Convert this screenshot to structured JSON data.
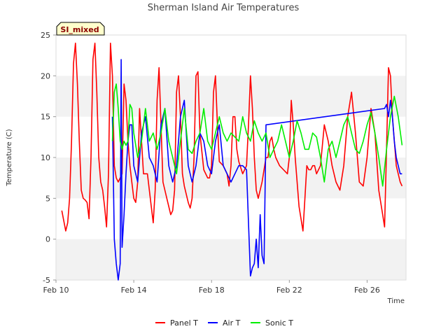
{
  "chart_data": {
    "type": "line",
    "title": "Sherman Island Air Temperatures",
    "xlabel": "Time",
    "ylabel": "Temperature (C)",
    "badge": "SI_mixed",
    "x_unit": "days since Feb 10",
    "xlim": [
      0,
      18
    ],
    "ylim": [
      -5,
      25
    ],
    "x_ticks": [
      0,
      4,
      8,
      12,
      16
    ],
    "x_tick_labels": [
      "Feb 10",
      "Feb 14",
      "Feb 18",
      "Feb 22",
      "Feb 26"
    ],
    "y_ticks": [
      -5,
      0,
      5,
      10,
      15,
      20,
      25
    ],
    "y_tick_labels": [
      "-5",
      "0",
      "5",
      "10",
      "15",
      "20",
      "25"
    ],
    "grid": "horizontal bands",
    "band_color": "#f2f2f2",
    "legend_position": "bottom",
    "series": [
      {
        "name": "Panel T",
        "color": "#ff0000",
        "x": [
          0.3,
          0.5,
          0.6,
          0.7,
          0.8,
          0.9,
          1.0,
          1.1,
          1.2,
          1.3,
          1.4,
          1.5,
          1.6,
          1.7,
          1.8,
          1.9,
          2.0,
          2.1,
          2.2,
          2.3,
          2.4,
          2.5,
          2.6,
          2.7,
          2.8,
          2.9,
          3.0,
          3.1,
          3.2,
          3.3,
          3.4,
          3.5,
          3.6,
          3.7,
          3.8,
          3.9,
          4.0,
          4.1,
          4.2,
          4.3,
          4.5,
          4.7,
          4.9,
          5.0,
          5.1,
          5.2,
          5.3,
          5.4,
          5.5,
          5.7,
          5.9,
          6.0,
          6.1,
          6.2,
          6.3,
          6.4,
          6.5,
          6.6,
          6.8,
          6.9,
          7.0,
          7.1,
          7.2,
          7.3,
          7.4,
          7.6,
          7.8,
          7.9,
          8.0,
          8.1,
          8.2,
          8.3,
          8.4,
          8.6,
          8.8,
          8.9,
          9.0,
          9.1,
          9.2,
          9.3,
          9.4,
          9.6,
          9.8,
          9.9,
          10.0,
          10.1,
          10.2,
          10.3,
          10.4,
          10.6,
          10.8,
          10.9,
          11.0,
          11.1,
          11.2,
          11.3,
          11.5,
          11.7,
          11.9,
          12.0,
          12.1,
          12.2,
          12.3,
          12.5,
          12.7,
          12.8,
          12.9,
          13.0,
          13.1,
          13.2,
          13.3,
          13.4,
          13.6,
          13.8,
          14.0,
          14.2,
          14.4,
          14.6,
          14.8,
          15.0,
          15.2,
          15.4,
          15.6,
          15.8,
          16.0,
          16.2,
          16.4,
          16.6,
          16.8,
          16.9,
          17.0,
          17.1,
          17.2,
          17.3,
          17.5,
          17.7,
          17.8
        ],
        "y": [
          3.5,
          1.0,
          2.0,
          5.0,
          12.0,
          21.5,
          24.0,
          19.0,
          12.0,
          6.0,
          5.0,
          4.8,
          4.5,
          2.5,
          10.0,
          22.0,
          24.0,
          18.0,
          10.0,
          7.0,
          6.0,
          4.0,
          1.5,
          8.0,
          24.0,
          20.0,
          9.0,
          7.5,
          7.0,
          7.5,
          8.0,
          19.0,
          17.0,
          12.0,
          9.0,
          7.0,
          5.0,
          4.5,
          7.0,
          16.0,
          8.0,
          8.0,
          4.0,
          2.0,
          6.0,
          17.0,
          21.0,
          14.0,
          7.0,
          5.0,
          3.0,
          3.5,
          6.0,
          18.0,
          20.0,
          15.0,
          8.0,
          6.5,
          4.5,
          3.8,
          5.0,
          10.0,
          20.0,
          20.5,
          13.0,
          8.5,
          7.5,
          7.5,
          9.0,
          18.0,
          20.0,
          14.0,
          9.5,
          9.0,
          8.0,
          6.5,
          9.0,
          15.0,
          15.0,
          11.0,
          9.5,
          8.0,
          9.0,
          14.0,
          20.0,
          16.0,
          10.0,
          6.0,
          5.0,
          7.0,
          10.0,
          10.0,
          12.0,
          12.5,
          11.0,
          10.0,
          9.0,
          8.5,
          8.0,
          10.0,
          17.0,
          14.0,
          10.0,
          4.0,
          1.0,
          5.0,
          9.0,
          8.5,
          8.5,
          9.0,
          9.0,
          8.0,
          9.0,
          14.0,
          12.0,
          9.0,
          7.0,
          6.0,
          9.0,
          15.0,
          18.0,
          13.0,
          7.0,
          6.5,
          10.0,
          16.0,
          13.0,
          6.0,
          3.0,
          1.5,
          11.0,
          21.0,
          20.0,
          15.0,
          9.0,
          7.0,
          6.5
        ]
      },
      {
        "name": "Air T",
        "color": "#0000ff",
        "x": [
          2.9,
          3.0,
          3.1,
          3.2,
          3.3,
          3.35,
          3.4,
          3.5,
          3.6,
          3.7,
          3.8,
          3.9,
          4.0,
          4.2,
          4.4,
          4.6,
          4.8,
          5.0,
          5.2,
          5.4,
          5.6,
          5.8,
          6.0,
          6.2,
          6.4,
          6.6,
          6.8,
          7.0,
          7.2,
          7.4,
          7.6,
          7.8,
          8.0,
          8.2,
          8.4,
          8.6,
          8.8,
          9.0,
          9.2,
          9.4,
          9.6,
          9.8,
          10.0,
          10.1,
          10.2,
          10.3,
          10.4,
          10.5,
          10.6,
          10.7,
          10.8,
          16.9,
          17.0,
          17.1,
          17.2,
          17.3,
          17.4,
          17.5,
          17.6,
          17.7,
          17.8
        ],
        "y": [
          15.0,
          0.0,
          -3.0,
          -5.0,
          -3.0,
          22.0,
          -1.0,
          3.0,
          8.0,
          12.0,
          14.0,
          14.0,
          9.0,
          7.0,
          13.0,
          15.0,
          10.0,
          9.0,
          7.0,
          14.0,
          16.0,
          9.0,
          7.0,
          9.0,
          15.0,
          17.0,
          9.0,
          7.0,
          9.0,
          13.0,
          12.0,
          9.0,
          8.0,
          12.0,
          14.0,
          9.0,
          8.0,
          7.0,
          8.0,
          9.0,
          9.0,
          8.5,
          -4.5,
          -3.5,
          -3.0,
          0.0,
          -3.5,
          3.0,
          -2.0,
          -3.0,
          14.0,
          16.0,
          16.5,
          15.0,
          17.0,
          15.0,
          12.0,
          10.0,
          9.0,
          8.0,
          8.0
        ]
      },
      {
        "name": "Sonic T",
        "color": "#00ee00",
        "x": [
          2.9,
          3.0,
          3.1,
          3.2,
          3.3,
          3.4,
          3.5,
          3.6,
          3.7,
          3.8,
          3.9,
          4.0,
          4.2,
          4.4,
          4.6,
          4.8,
          5.0,
          5.2,
          5.4,
          5.6,
          5.8,
          6.0,
          6.2,
          6.4,
          6.6,
          6.8,
          7.0,
          7.2,
          7.4,
          7.6,
          7.8,
          8.0,
          8.2,
          8.4,
          8.6,
          8.8,
          9.0,
          9.2,
          9.4,
          9.6,
          9.8,
          10.0,
          10.2,
          10.4,
          10.6,
          10.8,
          11.0,
          11.2,
          11.4,
          11.6,
          11.8,
          12.0,
          12.2,
          12.4,
          12.6,
          12.8,
          13.0,
          13.2,
          13.4,
          13.6,
          13.8,
          14.0,
          14.2,
          14.4,
          14.6,
          14.8,
          15.0,
          15.2,
          15.4,
          15.6,
          15.8,
          16.0,
          16.2,
          16.4,
          16.6,
          16.8,
          17.0,
          17.2,
          17.4,
          17.6,
          17.8
        ],
        "y": [
          12.0,
          18.0,
          19.0,
          16.0,
          12.0,
          11.0,
          12.0,
          11.5,
          12.0,
          16.5,
          16.0,
          13.0,
          10.0,
          12.0,
          16.0,
          12.0,
          13.0,
          11.0,
          13.0,
          16.0,
          12.0,
          10.0,
          8.0,
          12.0,
          16.0,
          11.0,
          10.5,
          12.0,
          13.0,
          16.0,
          12.0,
          11.0,
          13.0,
          15.0,
          13.0,
          12.0,
          13.0,
          12.5,
          12.0,
          15.0,
          13.0,
          12.0,
          14.5,
          13.0,
          12.0,
          13.0,
          10.0,
          11.0,
          12.0,
          14.0,
          12.0,
          10.0,
          12.0,
          14.5,
          13.0,
          11.0,
          11.0,
          13.0,
          12.5,
          10.0,
          7.0,
          11.0,
          12.0,
          10.0,
          12.0,
          14.0,
          15.0,
          13.0,
          11.0,
          10.5,
          12.0,
          14.0,
          15.5,
          13.0,
          10.0,
          6.5,
          11.0,
          15.0,
          17.5,
          15.0,
          11.5
        ]
      }
    ]
  }
}
